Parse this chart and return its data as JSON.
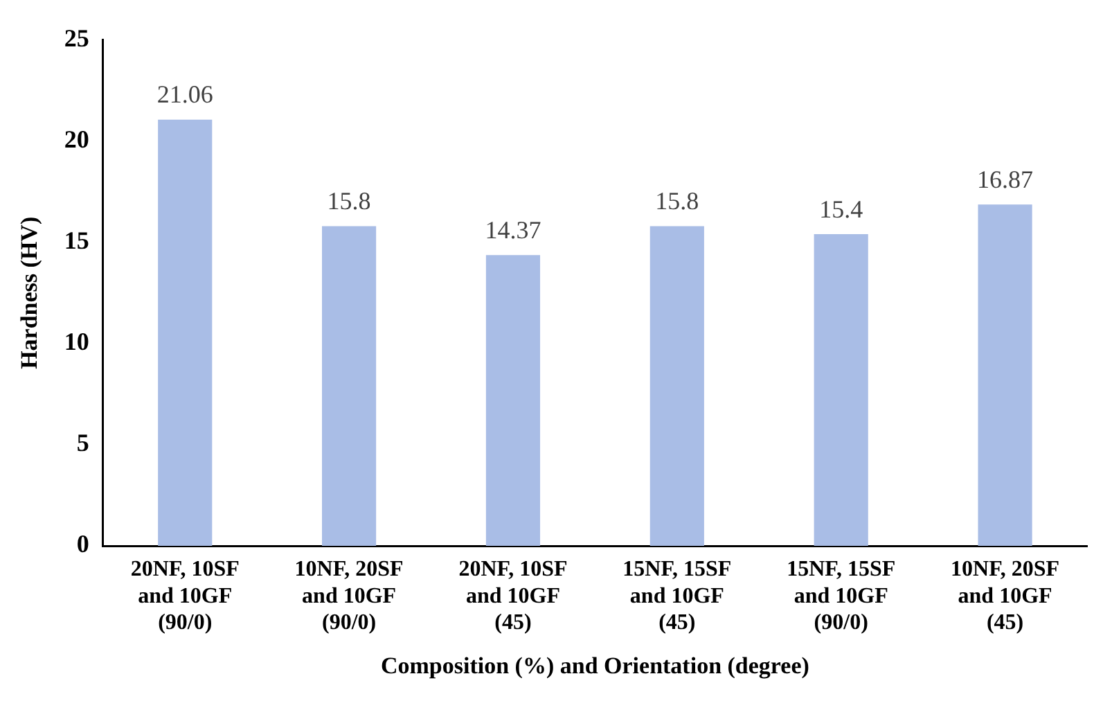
{
  "chart_data": {
    "type": "bar",
    "xlabel": "Composition (%) and Orientation (degree)",
    "ylabel": "Hardness (HV)",
    "categories": [
      "20NF, 10SF and 10GF (90/0)",
      "10NF, 20SF and 10GF (90/0)",
      "20NF, 10SF and 10GF (45)",
      "15NF, 15SF and 10GF (45)",
      "15NF, 15SF and 10GF (90/0)",
      "10NF, 20SF and 10GF (45)"
    ],
    "values": [
      21.06,
      15.8,
      14.37,
      15.8,
      15.4,
      16.87
    ],
    "color": "#a9bde6",
    "ylim": [
      0,
      25
    ],
    "yticks": [
      0,
      5,
      10,
      15,
      20,
      25
    ],
    "grid": false,
    "legend": false,
    "data_labels": true
  }
}
